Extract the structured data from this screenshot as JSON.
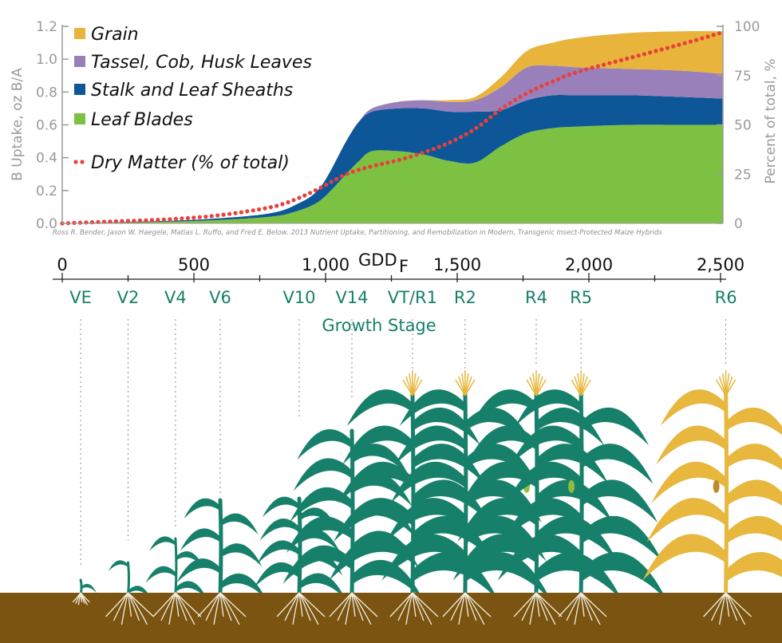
{
  "chart_data": {
    "type": "area",
    "xlabel": "GDD",
    "xlabel_subscript": "F",
    "ylabel": "B Uptake, oz B/A",
    "ylabel_right": "Percent of total, %",
    "xlim": [
      0,
      2560
    ],
    "ylim": [
      0,
      1.2
    ],
    "ylim_right": [
      0,
      100
    ],
    "y_ticks": [
      "0.0",
      "0.2",
      "0.4",
      "0.6",
      "0.8",
      "1.0",
      "1.2"
    ],
    "y_ticks_right": [
      "0",
      "25",
      "50",
      "75",
      "100"
    ],
    "x_ticks": [
      {
        "value": 0,
        "label": "0"
      },
      {
        "value": 500,
        "label": "500"
      },
      {
        "value": 1000,
        "label": "1,000"
      },
      {
        "value": 1500,
        "label": "1,500"
      },
      {
        "value": 2000,
        "label": "2,000"
      },
      {
        "value": 2500,
        "label": "2,500"
      }
    ],
    "source": "Ross R. Bender, Jason W. Haegele, Matias L. Ruffo, and Fred E. Below. 2013 Nutrient Uptake, Partitioning, and Remobilization in Modern, Transgenic Insect-Protected Maize Hybrids",
    "x": [
      0,
      200,
      400,
      600,
      800,
      900,
      1000,
      1100,
      1150,
      1200,
      1300,
      1400,
      1500,
      1600,
      1700,
      1800,
      1900,
      2000,
      2200,
      2400,
      2560
    ],
    "series": [
      {
        "name": "Leaf Blades",
        "color": "#7dc142",
        "values": [
          0,
          0.005,
          0.01,
          0.02,
          0.04,
          0.07,
          0.14,
          0.3,
          0.38,
          0.44,
          0.44,
          0.42,
          0.38,
          0.37,
          0.47,
          0.55,
          0.58,
          0.59,
          0.6,
          0.6,
          0.6
        ]
      },
      {
        "name": "Stalk and Leaf Sheaths",
        "color": "#0d5799",
        "values": [
          0,
          0.002,
          0.005,
          0.01,
          0.02,
          0.04,
          0.08,
          0.2,
          0.24,
          0.24,
          0.26,
          0.28,
          0.3,
          0.31,
          0.22,
          0.2,
          0.2,
          0.19,
          0.18,
          0.17,
          0.16
        ]
      },
      {
        "name": "Tassel, Cob, Husk Leaves",
        "color": "#9a80ba",
        "values": [
          0,
          0,
          0,
          0,
          0,
          0,
          0,
          0,
          0,
          0.02,
          0.04,
          0.05,
          0.06,
          0.07,
          0.14,
          0.2,
          0.18,
          0.17,
          0.16,
          0.16,
          0.15
        ]
      },
      {
        "name": "Grain",
        "color": "#e8b43c",
        "values": [
          0,
          0,
          0,
          0,
          0,
          0,
          0,
          0,
          0,
          0,
          0,
          0,
          0.01,
          0.02,
          0.06,
          0.1,
          0.14,
          0.18,
          0.22,
          0.24,
          0.26
        ]
      }
    ],
    "dry_matter": {
      "name": "Dry Matter (% of total)",
      "color": "#e8403a",
      "x": [
        0,
        200,
        400,
        600,
        800,
        900,
        1000,
        1100,
        1200,
        1300,
        1400,
        1500,
        1600,
        1700,
        1800,
        1900,
        2000,
        2200,
        2400,
        2560
      ],
      "values": [
        0,
        1,
        2,
        4,
        8,
        12,
        18,
        25,
        29,
        32,
        36,
        41,
        48,
        58,
        66,
        72,
        77,
        84,
        91,
        97
      ]
    },
    "legend": {
      "placement": "top-left",
      "items": [
        {
          "label": "Grain",
          "color": "#e8b43c",
          "marker": "square"
        },
        {
          "label": "Tassel, Cob, Husk Leaves",
          "color": "#9a80ba",
          "marker": "square"
        },
        {
          "label": "Stalk and Leaf Sheaths",
          "color": "#0d5799",
          "marker": "square"
        },
        {
          "label": "Leaf Blades",
          "color": "#7dc142",
          "marker": "square"
        },
        {
          "label": "Dry Matter (% of total)",
          "color": "#e8403a",
          "marker": "dots"
        }
      ]
    },
    "growth_stage": {
      "label": "Growth Stage",
      "stages": [
        {
          "label": "VE",
          "gdd": 70
        },
        {
          "label": "V2",
          "gdd": 250
        },
        {
          "label": "V4",
          "gdd": 430
        },
        {
          "label": "V6",
          "gdd": 600
        },
        {
          "label": "V10",
          "gdd": 900
        },
        {
          "label": "V14",
          "gdd": 1100
        },
        {
          "label": "VT/R1",
          "gdd": 1330
        },
        {
          "label": "R2",
          "gdd": 1530
        },
        {
          "label": "R4",
          "gdd": 1800
        },
        {
          "label": "R5",
          "gdd": 1970
        },
        {
          "label": "R6",
          "gdd": 2520
        }
      ]
    },
    "colors": {
      "plant_green": "#17806a",
      "plant_mature": "#e7b73e",
      "soil": "#7a5410",
      "stage_text": "#17806a"
    }
  }
}
